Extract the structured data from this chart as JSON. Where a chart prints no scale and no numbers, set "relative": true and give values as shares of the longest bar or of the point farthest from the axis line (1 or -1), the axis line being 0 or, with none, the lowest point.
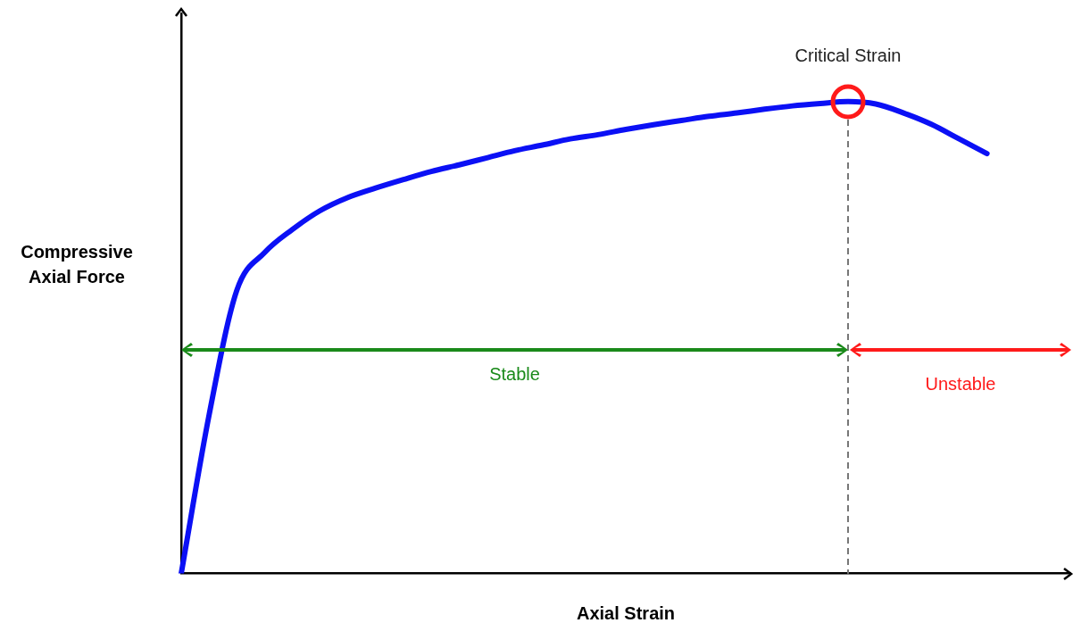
{
  "chart_data": {
    "type": "line",
    "xlabel": "Axial Strain",
    "ylabel": "Compressive Axial Force",
    "relative": true,
    "categories": [
      null,
      null,
      null,
      null,
      null,
      null,
      null,
      null,
      null,
      null,
      null,
      null,
      null,
      null,
      null,
      null,
      null,
      null,
      null,
      null,
      null,
      null,
      null,
      null,
      null,
      null,
      null,
      null,
      null,
      null,
      null,
      null,
      null
    ],
    "series": [
      {
        "color": "#0b10f5",
        "values": [
          0,
          0.335,
          0.6,
          0.68,
          0.729,
          0.769,
          0.797,
          0.817,
          0.835,
          0.852,
          0.866,
          0.881,
          0.896,
          0.908,
          0.921,
          0.93,
          0.941,
          0.951,
          0.96,
          0.969,
          0.976,
          0.984,
          0.991,
          0.996,
          1,
          0.995,
          0.976,
          0.952,
          0.921,
          0.89,
          null,
          null,
          null
        ]
      }
    ],
    "annotations": [
      "Critical Strain",
      "Stable",
      "Unstable"
    ],
    "grid": false,
    "legend": false,
    "marker": "none",
    "line_style": "solid"
  }
}
